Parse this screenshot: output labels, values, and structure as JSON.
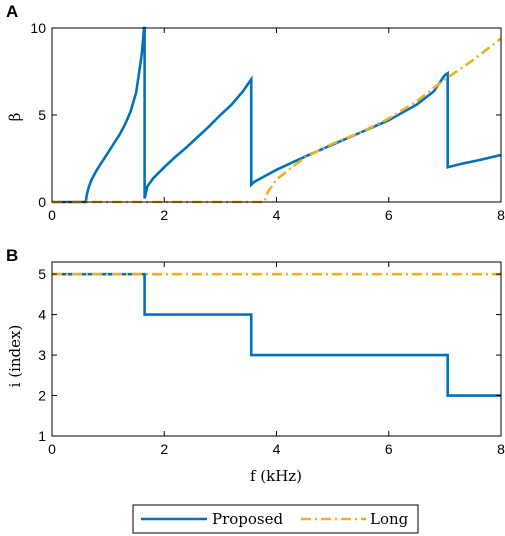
{
  "chart_data": [
    {
      "panel": "A",
      "type": "line",
      "ylabel": "β",
      "xlim": [
        0,
        8
      ],
      "ylim": [
        0,
        10
      ],
      "xticks": [
        0,
        2,
        4,
        6,
        8
      ],
      "yticks": [
        0,
        5,
        10
      ],
      "grid": false,
      "series": [
        {
          "name": "Proposed",
          "color": "#0072BD",
          "style": "solid",
          "x": [
            0,
            0.6,
            0.62,
            0.65,
            0.7,
            0.8,
            0.9,
            1.0,
            1.1,
            1.2,
            1.3,
            1.4,
            1.5,
            1.6,
            1.64,
            1.65,
            1.65,
            1.7,
            1.8,
            2.0,
            2.2,
            2.4,
            2.6,
            2.8,
            3.0,
            3.2,
            3.4,
            3.55,
            3.55,
            3.6,
            3.8,
            4.0,
            4.5,
            5.0,
            5.5,
            6.0,
            6.5,
            6.8,
            7.0,
            7.05,
            7.05,
            7.3,
            7.6,
            8.0
          ],
          "y": [
            0,
            0,
            0.4,
            0.8,
            1.25,
            1.85,
            2.35,
            2.85,
            3.35,
            3.85,
            4.45,
            5.2,
            6.3,
            8.5,
            10,
            10,
            0.2,
            0.9,
            1.35,
            2.0,
            2.6,
            3.15,
            3.75,
            4.35,
            5.0,
            5.6,
            6.35,
            7.05,
            1.0,
            1.15,
            1.5,
            1.85,
            2.6,
            3.3,
            4.0,
            4.7,
            5.6,
            6.35,
            7.3,
            7.4,
            2.0,
            2.2,
            2.4,
            2.7
          ]
        },
        {
          "name": "Long",
          "color": "#EDB120",
          "style": "dash-dot",
          "x": [
            0,
            3.78,
            3.85,
            4.0,
            4.5,
            5.0,
            5.5,
            6.0,
            6.5,
            7.0,
            7.5,
            8.0
          ],
          "y": [
            0,
            0,
            0.6,
            1.3,
            2.55,
            3.35,
            4.0,
            4.8,
            5.8,
            7.05,
            8.15,
            9.4
          ]
        }
      ]
    },
    {
      "panel": "B",
      "type": "line",
      "ylabel": "i (index)",
      "xlabel": "f (kHz)",
      "xlim": [
        0,
        8
      ],
      "ylim": [
        1,
        5.3
      ],
      "xticks": [
        0,
        2,
        4,
        6,
        8
      ],
      "yticks": [
        1,
        2,
        3,
        4,
        5
      ],
      "grid": false,
      "series": [
        {
          "name": "Proposed",
          "color": "#0072BD",
          "style": "solid",
          "x": [
            0,
            1.65,
            1.65,
            3.55,
            3.55,
            7.05,
            7.05,
            8.0
          ],
          "y": [
            5,
            5,
            4,
            4,
            3,
            3,
            2,
            2
          ]
        },
        {
          "name": "Long",
          "color": "#EDB120",
          "style": "dash-dot",
          "x": [
            0,
            8.0
          ],
          "y": [
            5,
            5
          ]
        }
      ]
    }
  ],
  "legend": {
    "items": [
      {
        "label": "Proposed",
        "color": "#0072BD",
        "style": "solid"
      },
      {
        "label": "Long",
        "color": "#EDB120",
        "style": "dash-dot"
      }
    ],
    "placement": "bottom-center"
  }
}
